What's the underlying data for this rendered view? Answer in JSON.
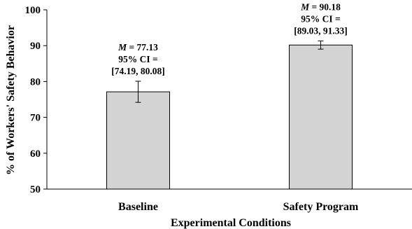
{
  "chart_data": {
    "type": "bar",
    "categories": [
      "Baseline",
      "Safety Program"
    ],
    "values": [
      77.13,
      90.18
    ],
    "ci": [
      [
        74.19,
        80.08
      ],
      [
        89.03,
        91.33
      ]
    ],
    "annotations": [
      {
        "m_label": "M",
        "m_value": "= 77.13",
        "ci_label": "95% CI =",
        "ci_range": "[74.19, 80.08]"
      },
      {
        "m_label": "M",
        "m_value": "= 90.18",
        "ci_label": "95% CI =",
        "ci_range": "[89.03, 91.33]"
      }
    ],
    "xlabel": "Experimental  Conditions",
    "ylabel": "% of Workers'  Safety Behavior",
    "ylim": [
      50,
      100
    ],
    "yticks": [
      50,
      60,
      70,
      80,
      90,
      100
    ],
    "bar_color": "#d3d3d3",
    "grid": false,
    "legend": "none"
  }
}
